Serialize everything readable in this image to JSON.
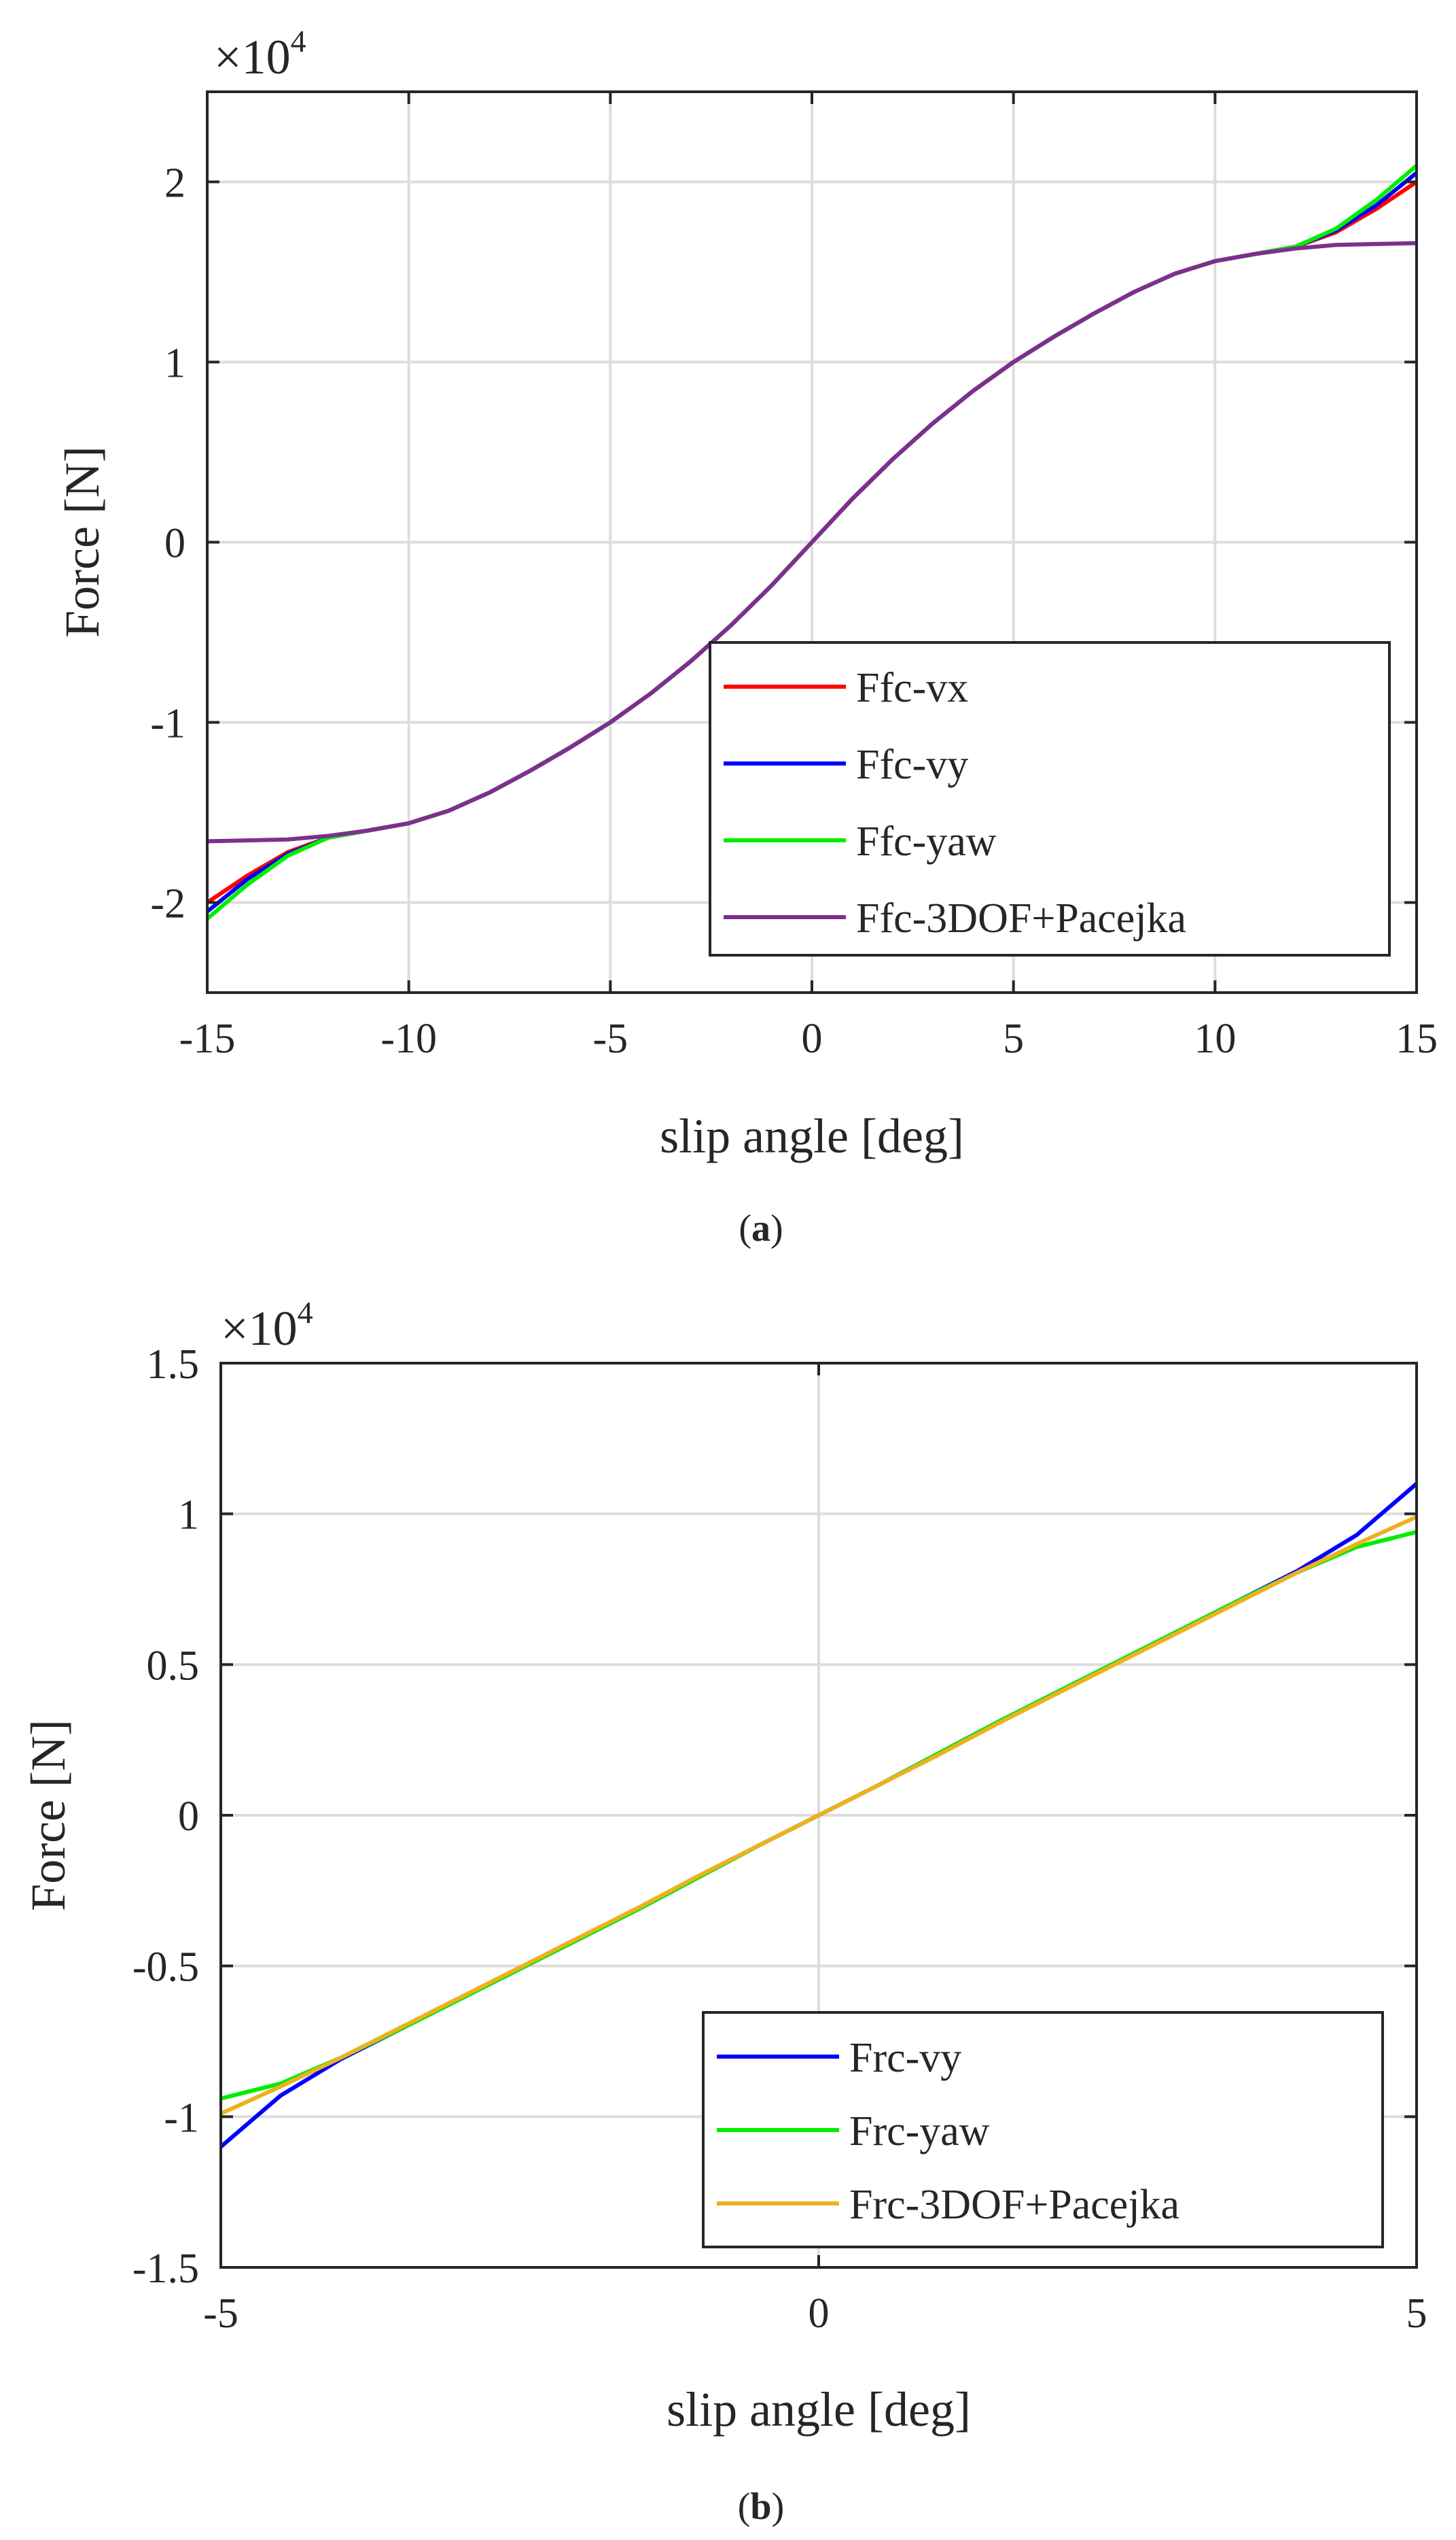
{
  "caption_a": {
    "open": "(",
    "letter": "a",
    "close": ")"
  },
  "caption_b": {
    "open": "(",
    "letter": "b",
    "close": ")"
  },
  "chart_data": [
    {
      "type": "line",
      "panel": "a",
      "xlabel": "slip angle [deg]",
      "ylabel": "Force [N]",
      "exponent_label": {
        "base": "×10",
        "power": "4"
      },
      "xlim": [
        -15,
        15
      ],
      "ylim": [
        -2.5,
        2.5
      ],
      "xticks": [
        -15,
        -10,
        -5,
        0,
        5,
        10,
        15
      ],
      "xtick_labels": [
        "-15",
        "-10",
        "-5",
        "0",
        "5",
        "10",
        "15"
      ],
      "yticks": [
        -2,
        -1,
        0,
        1,
        2
      ],
      "ytick_labels": [
        "-2",
        "-1",
        "0",
        "1",
        "2"
      ],
      "grid": true,
      "legend_position": "bottom-right",
      "x": [
        -15,
        -14,
        -13,
        -12,
        -11,
        -10,
        -9,
        -8,
        -7,
        -6,
        -5,
        -4,
        -3,
        -2,
        -1,
        0,
        1,
        2,
        3,
        4,
        5,
        6,
        7,
        8,
        9,
        10,
        11,
        12,
        13,
        14,
        15
      ],
      "series": [
        {
          "name": "Ffc-vx",
          "color": "#ff0000",
          "values": [
            -2.0,
            -1.85,
            -1.72,
            -1.64,
            -1.6,
            -1.56,
            -1.49,
            -1.39,
            -1.27,
            -1.14,
            -1.0,
            -0.84,
            -0.66,
            -0.46,
            -0.24,
            0.0,
            0.24,
            0.46,
            0.66,
            0.84,
            1.0,
            1.14,
            1.27,
            1.39,
            1.49,
            1.56,
            1.6,
            1.64,
            1.72,
            1.85,
            2.0
          ]
        },
        {
          "name": "Ffc-vy",
          "color": "#0000ff",
          "values": [
            -2.05,
            -1.87,
            -1.73,
            -1.64,
            -1.6,
            -1.56,
            -1.49,
            -1.39,
            -1.27,
            -1.14,
            -1.0,
            -0.84,
            -0.66,
            -0.46,
            -0.24,
            0.0,
            0.24,
            0.46,
            0.66,
            0.84,
            1.0,
            1.14,
            1.27,
            1.39,
            1.49,
            1.56,
            1.6,
            1.64,
            1.73,
            1.87,
            2.05
          ]
        },
        {
          "name": "Ffc-yaw",
          "color": "#00ee00",
          "values": [
            -2.09,
            -1.9,
            -1.74,
            -1.64,
            -1.6,
            -1.56,
            -1.49,
            -1.39,
            -1.27,
            -1.14,
            -1.0,
            -0.84,
            -0.66,
            -0.46,
            -0.24,
            0.0,
            0.24,
            0.46,
            0.66,
            0.84,
            1.0,
            1.14,
            1.27,
            1.39,
            1.49,
            1.56,
            1.6,
            1.64,
            1.74,
            1.9,
            2.09
          ]
        },
        {
          "name": "Ffc-3DOF+Pacejka",
          "color": "#7e2f8e",
          "values": [
            -1.66,
            -1.655,
            -1.65,
            -1.63,
            -1.6,
            -1.56,
            -1.49,
            -1.39,
            -1.27,
            -1.14,
            -1.0,
            -0.84,
            -0.66,
            -0.46,
            -0.24,
            0.0,
            0.24,
            0.46,
            0.66,
            0.84,
            1.0,
            1.14,
            1.27,
            1.39,
            1.49,
            1.56,
            1.6,
            1.63,
            1.65,
            1.655,
            1.66
          ]
        }
      ]
    },
    {
      "type": "line",
      "panel": "b",
      "xlabel": "slip angle [deg]",
      "ylabel": "Force [N]",
      "exponent_label": {
        "base": "×10",
        "power": "4"
      },
      "xlim": [
        -5,
        5
      ],
      "ylim": [
        -1.5,
        1.5
      ],
      "xticks": [
        -5,
        0,
        5
      ],
      "xtick_labels": [
        "-5",
        "0",
        "5"
      ],
      "yticks": [
        -1.5,
        -1,
        -0.5,
        0,
        0.5,
        1,
        1.5
      ],
      "ytick_labels": [
        "-1.5",
        "-1",
        "-0.5",
        "0",
        "0.5",
        "1",
        "1.5"
      ],
      "grid": true,
      "legend_position": "bottom-right",
      "x": [
        -5,
        -4.5,
        -4,
        -3.5,
        -3,
        -2.5,
        -2,
        -1.5,
        -1,
        -0.5,
        0,
        0.5,
        1,
        1.5,
        2,
        2.5,
        3,
        3.5,
        4,
        4.5,
        5
      ],
      "series": [
        {
          "name": "Frc-vy",
          "color": "#0000ff",
          "values": [
            -1.1,
            -0.93,
            -0.81,
            -0.71,
            -0.61,
            -0.51,
            -0.41,
            -0.31,
            -0.205,
            -0.1,
            0.0,
            0.1,
            0.205,
            0.31,
            0.41,
            0.51,
            0.61,
            0.71,
            0.81,
            0.93,
            1.1
          ]
        },
        {
          "name": "Frc-yaw",
          "color": "#00ee00",
          "values": [
            -0.94,
            -0.89,
            -0.805,
            -0.71,
            -0.61,
            -0.51,
            -0.41,
            -0.31,
            -0.205,
            -0.1,
            0.0,
            0.1,
            0.205,
            0.31,
            0.41,
            0.51,
            0.61,
            0.71,
            0.805,
            0.89,
            0.94
          ]
        },
        {
          "name": "Frc-3DOF+Pacejka",
          "color": "#edb120",
          "values": [
            -0.99,
            -0.9,
            -0.805,
            -0.705,
            -0.605,
            -0.505,
            -0.405,
            -0.305,
            -0.2,
            -0.1,
            0.0,
            0.1,
            0.2,
            0.305,
            0.405,
            0.505,
            0.605,
            0.705,
            0.805,
            0.9,
            0.99
          ]
        }
      ]
    }
  ]
}
